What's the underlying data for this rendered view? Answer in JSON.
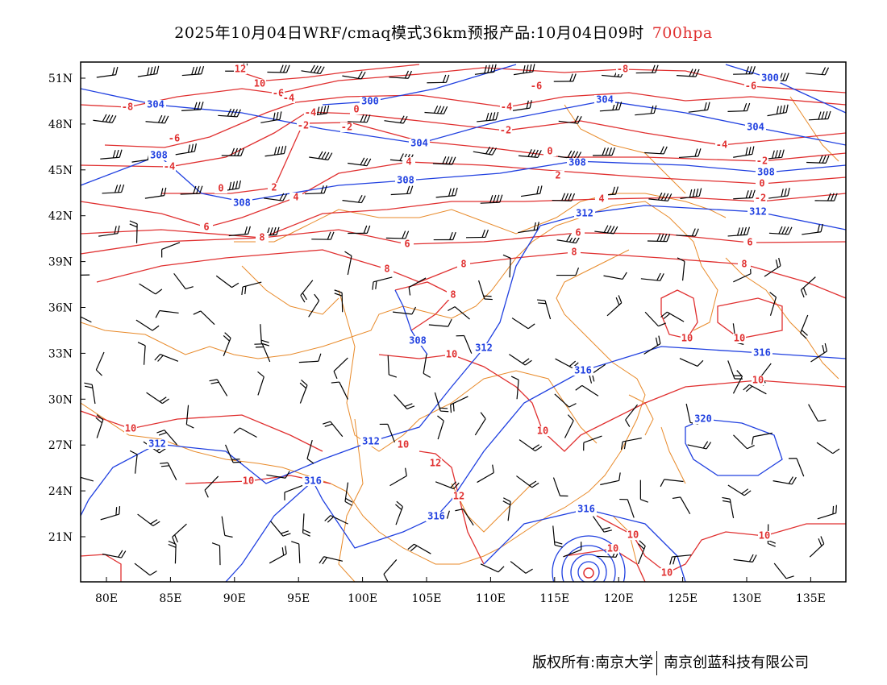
{
  "title": {
    "main": "2025年10月04日WRF/cmaq模式36km预报产品:10月04日09时",
    "level": "700hpa"
  },
  "footer": {
    "owner": "版权所有:南京大学",
    "company": "南京创蓝科技有限公司"
  },
  "axes": {
    "lat_labels": [
      "51N",
      "48N",
      "45N",
      "42N",
      "39N",
      "36N",
      "33N",
      "30N",
      "27N",
      "24N",
      "21N"
    ],
    "lon_labels": [
      "80E",
      "85E",
      "90E",
      "95E",
      "100E",
      "105E",
      "110E",
      "115E",
      "120E",
      "125E",
      "130E",
      "135E"
    ]
  },
  "colors": {
    "temperature": "#e03030",
    "height": "#2040e0",
    "border": "#e88a2a",
    "wind": "#000000"
  },
  "temperature_labels": [
    "-8",
    "-8",
    "-6",
    "-6",
    "-6",
    "-6",
    "-4",
    "-4",
    "-4",
    "-4",
    "-4",
    "-2",
    "-2",
    "-2",
    "-2",
    "-2",
    "0",
    "0",
    "0",
    "0",
    "2",
    "2",
    "4",
    "4",
    "4",
    "6",
    "6",
    "6",
    "6",
    "8",
    "8",
    "8",
    "8",
    "8",
    "8",
    "12",
    "10",
    "10",
    "10",
    "10",
    "10",
    "10",
    "10",
    "10",
    "10",
    "10",
    "10",
    "10",
    "10",
    "12",
    "12"
  ],
  "height_labels": [
    "304",
    "300",
    "300",
    "304",
    "304",
    "304",
    "308",
    "308",
    "308",
    "308",
    "308",
    "308",
    "312",
    "312",
    "312",
    "312",
    "312",
    "316",
    "316",
    "316",
    "316",
    "316",
    "320"
  ]
}
